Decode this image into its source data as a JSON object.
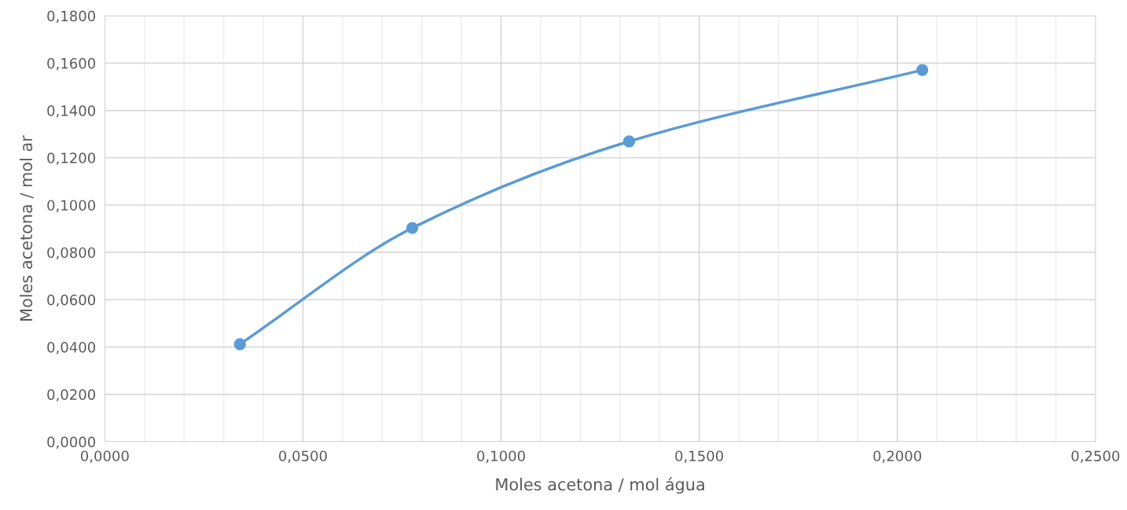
{
  "chart_data": {
    "type": "line",
    "xlabel": "Moles acetona / mol água",
    "ylabel": "Moles acetona / mol ar",
    "x": [
      0.0341,
      0.0776,
      0.1323,
      0.2063
    ],
    "series": [
      {
        "color": "#5b9bd5",
        "values": [
          0.0412,
          0.0903,
          0.1269,
          0.1571
        ]
      }
    ],
    "marker": "circle",
    "line_style": "solid",
    "grid": true,
    "xlim": [
      0,
      0.25
    ],
    "xticks": [
      {
        "value": 0,
        "label": "0,0000"
      },
      {
        "value": 0.01,
        "label": null
      },
      {
        "value": 0.02,
        "label": null
      },
      {
        "value": 0.03,
        "label": null
      },
      {
        "value": 0.04,
        "label": null
      },
      {
        "value": 0.05,
        "label": "0,0500"
      },
      {
        "value": 0.06,
        "label": null
      },
      {
        "value": 0.07,
        "label": null
      },
      {
        "value": 0.08,
        "label": null
      },
      {
        "value": 0.09,
        "label": null
      },
      {
        "value": 0.1,
        "label": "0,1000"
      },
      {
        "value": 0.11,
        "label": null
      },
      {
        "value": 0.12,
        "label": null
      },
      {
        "value": 0.13,
        "label": null
      },
      {
        "value": 0.14,
        "label": null
      },
      {
        "value": 0.15,
        "label": "0,1500"
      },
      {
        "value": 0.16,
        "label": null
      },
      {
        "value": 0.17,
        "label": null
      },
      {
        "value": 0.18,
        "label": null
      },
      {
        "value": 0.19,
        "label": null
      },
      {
        "value": 0.2,
        "label": "0,2000"
      },
      {
        "value": 0.21,
        "label": null
      },
      {
        "value": 0.22,
        "label": null
      },
      {
        "value": 0.23,
        "label": null
      },
      {
        "value": 0.24,
        "label": null
      },
      {
        "value": 0.25,
        "label": "0,2500"
      }
    ],
    "ylim": [
      0,
      0.18
    ],
    "yticks": [
      {
        "value": 0,
        "label": "0,0000"
      },
      {
        "value": 0.02,
        "label": "0,0200"
      },
      {
        "value": 0.04,
        "label": "0,0400"
      },
      {
        "value": 0.06,
        "label": "0,0600"
      },
      {
        "value": 0.08,
        "label": "0,0800"
      },
      {
        "value": 0.1,
        "label": "0,1000"
      },
      {
        "value": 0.12,
        "label": "0,1200"
      },
      {
        "value": 0.14,
        "label": "0,1400"
      },
      {
        "value": 0.16,
        "label": "0,1600"
      },
      {
        "value": 0.18,
        "label": "0,1800"
      }
    ]
  }
}
